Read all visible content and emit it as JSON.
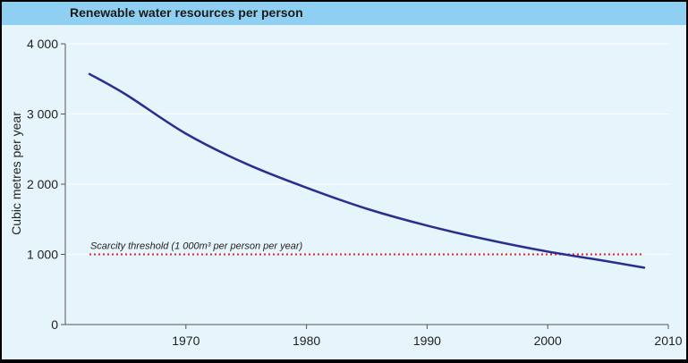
{
  "chart_data": {
    "type": "line",
    "title": "Renewable water resources per person",
    "xlabel": "",
    "ylabel": "Cubic metres per year",
    "xlim": [
      1960,
      2010
    ],
    "ylim": [
      0,
      4000
    ],
    "x_ticks": [
      1970,
      1980,
      1990,
      2000,
      2010
    ],
    "x_tick_labels": [
      "1970",
      "1980",
      "1990",
      "2000",
      "2010"
    ],
    "y_ticks": [
      0,
      1000,
      2000,
      3000,
      4000
    ],
    "y_tick_labels": [
      "0",
      "1 000",
      "2 000",
      "3 000",
      "4 000"
    ],
    "grid": "horizontal",
    "series": [
      {
        "color": "#2b2d8f",
        "x": [
          1962,
          1965,
          1970,
          1975,
          1980,
          1985,
          1990,
          1995,
          2000,
          2005,
          2008
        ],
        "y": [
          3570,
          3280,
          2720,
          2290,
          1950,
          1650,
          1410,
          1210,
          1040,
          900,
          810
        ]
      }
    ],
    "reference_line": {
      "y": 1000,
      "x_range": [
        1962,
        2008
      ],
      "style": "dotted",
      "color": "#e02020",
      "label": "Scarcity threshold (1 000m³ per person per year)"
    },
    "colors": {
      "background": "#e6f4fc",
      "title_band": "#8fd0f2",
      "gridline": "#ffffff"
    }
  }
}
